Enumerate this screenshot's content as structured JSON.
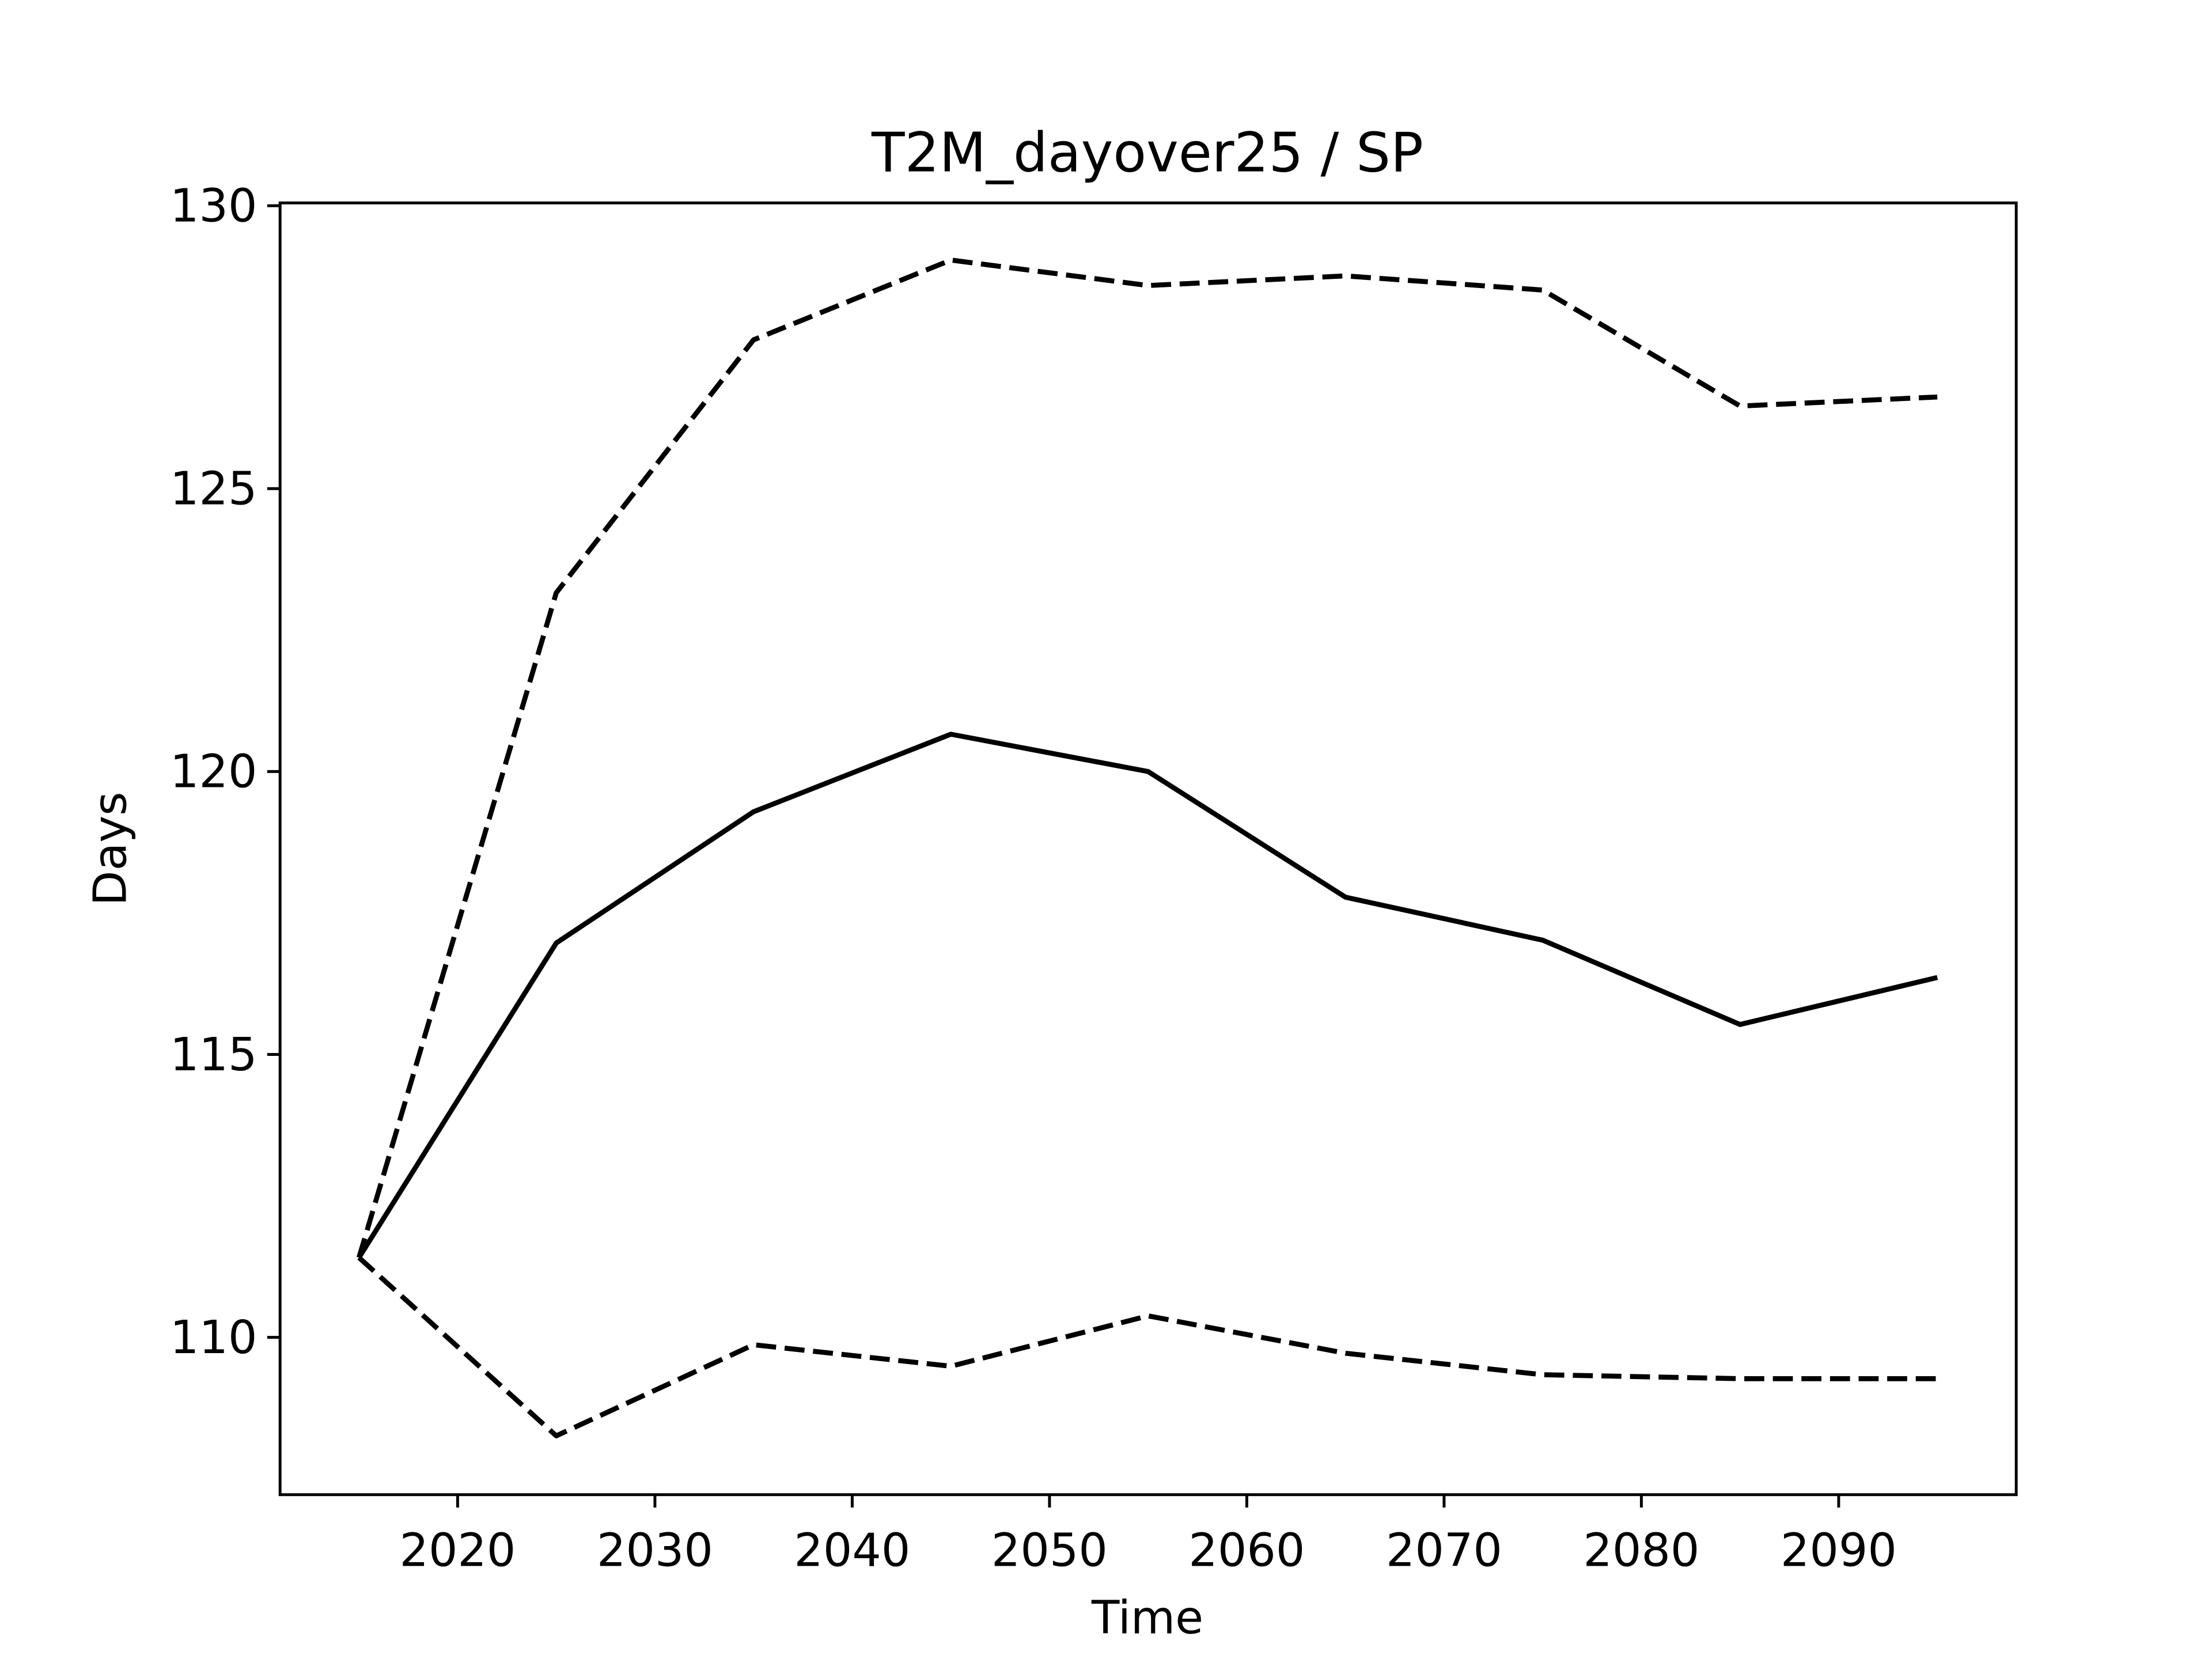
{
  "chart_data": {
    "type": "line",
    "title": "T2M_dayover25 / SP",
    "xlabel": "Time",
    "ylabel": "Days",
    "x": [
      2015,
      2025,
      2035,
      2045,
      2055,
      2065,
      2075,
      2085,
      2095
    ],
    "series": [
      {
        "color": "#000000",
        "linestyle": "solid",
        "values": [
          111.41,
          116.97,
          119.29,
          120.66,
          120.0,
          117.78,
          117.02,
          115.53,
          116.36
        ]
      },
      {
        "color": "#000000",
        "linestyle": "dashed",
        "values": [
          111.41,
          123.16,
          127.63,
          129.04,
          128.59,
          128.76,
          128.51,
          126.46,
          126.62
        ]
      },
      {
        "color": "#000000",
        "linestyle": "dashed",
        "values": [
          111.41,
          108.26,
          109.87,
          109.49,
          110.38,
          109.72,
          109.34,
          109.27,
          109.27
        ]
      }
    ],
    "xlim": [
      2011,
      2099
    ],
    "xticks": [
      2020,
      2030,
      2040,
      2050,
      2060,
      2070,
      2080,
      2090
    ],
    "ylim": [
      107.22,
      130.05
    ],
    "yticks": [
      110,
      115,
      120,
      125,
      130
    ],
    "grid": false
  }
}
